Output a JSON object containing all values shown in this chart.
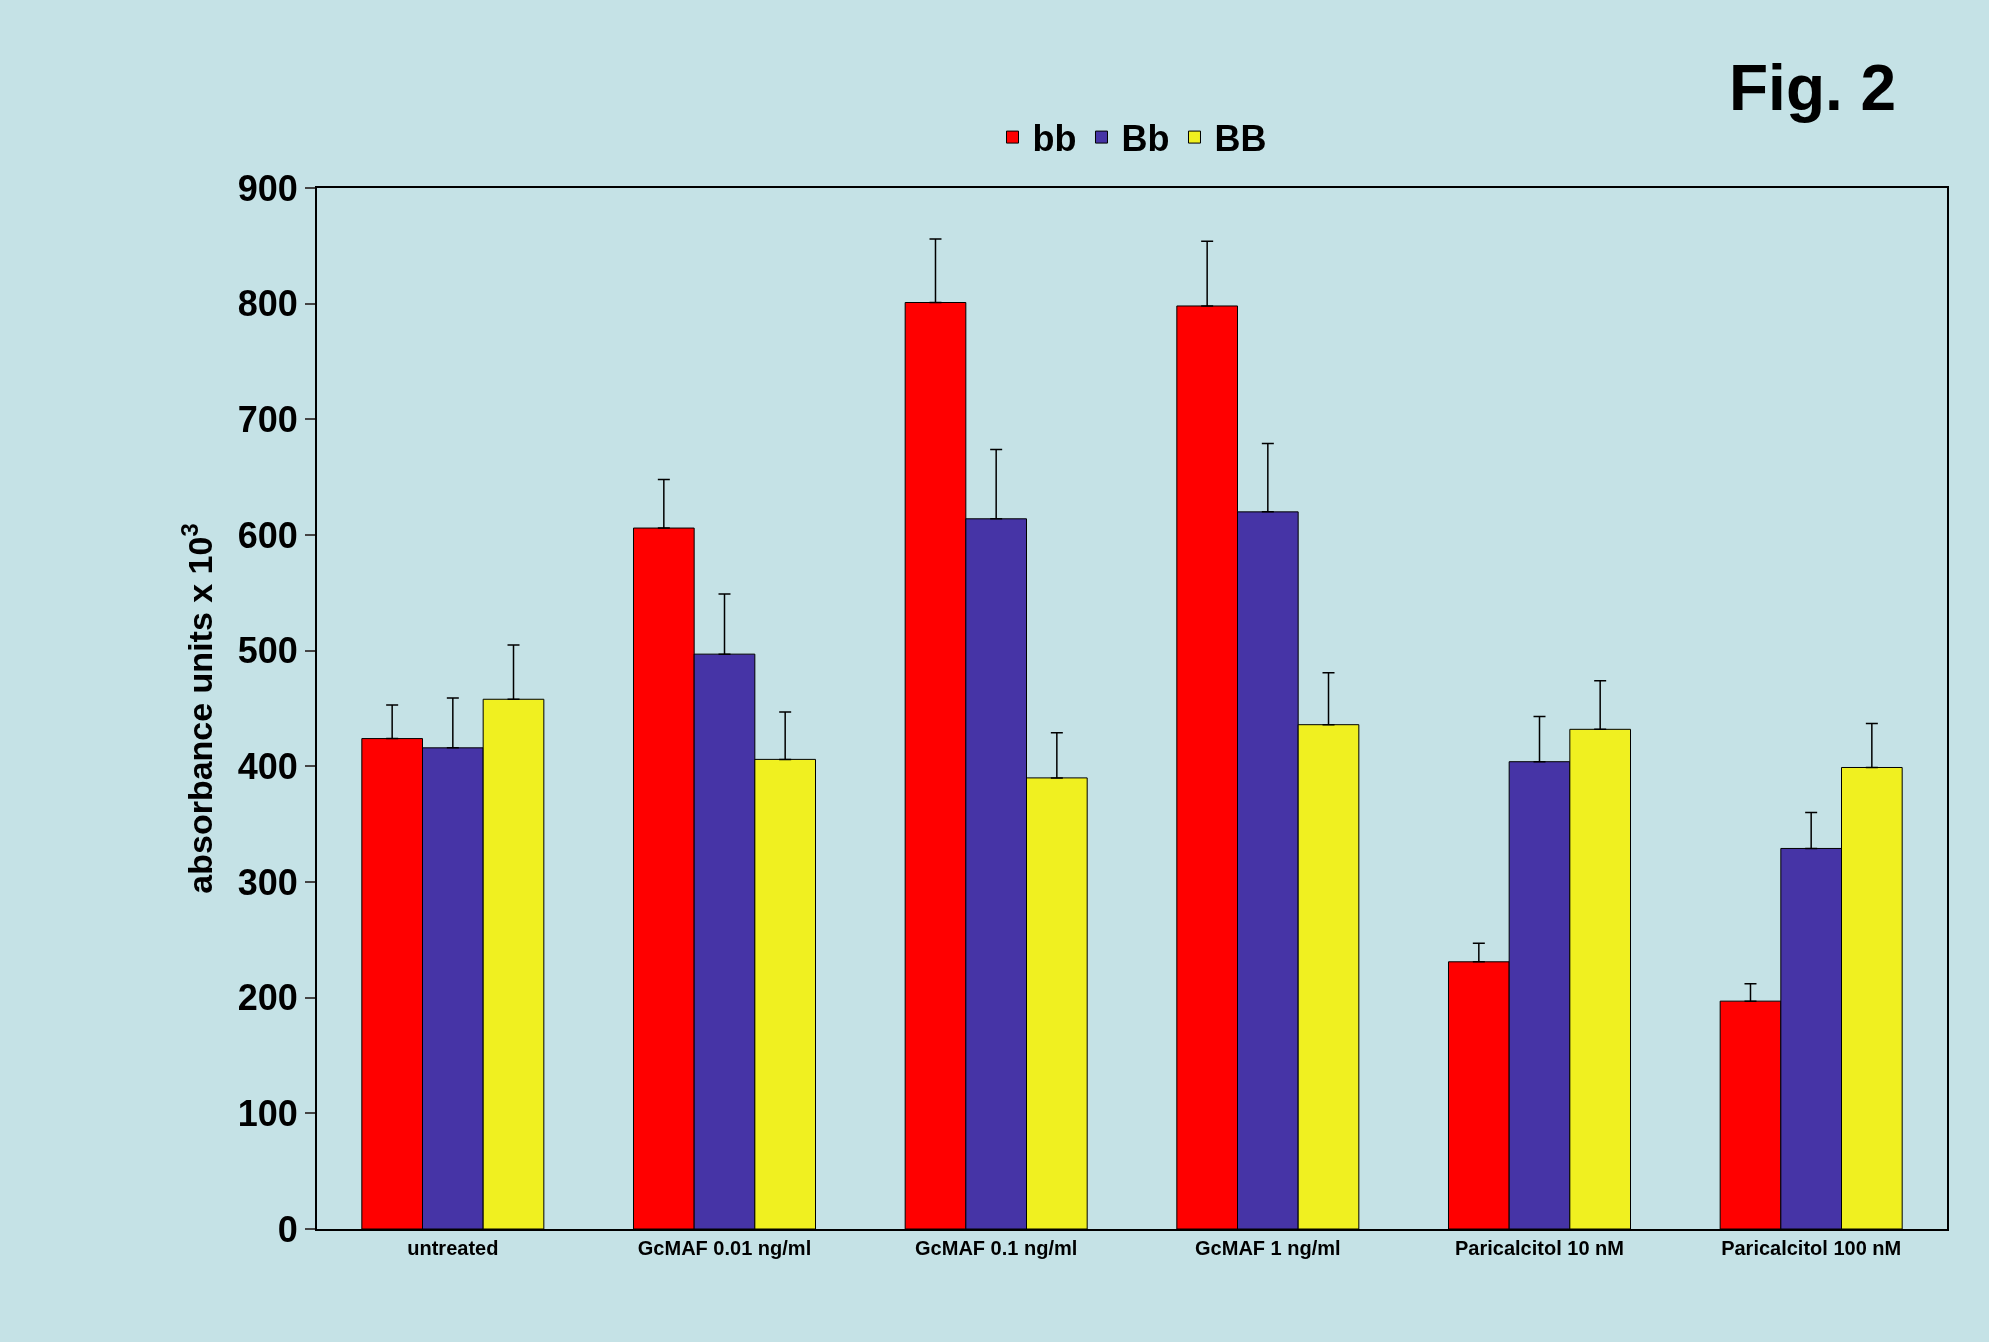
{
  "chart_data": {
    "type": "bar",
    "ylabel": "absorbance units x 10$^{3}$",
    "categories": [
      "untreated",
      "GcMAF 0.01 ng/ml",
      "GcMAF 0.1 ng/ml",
      "GcMAF 1 ng/ml",
      "Paricalcitol 10 nM",
      "Paricalcitol 100 nM"
    ],
    "series": [
      {
        "name": "bb",
        "color": "#ff0000",
        "values": [
          424,
          606,
          801,
          798,
          231,
          197
        ],
        "errors": [
          [
            424,
            453
          ],
          [
            606,
            648
          ],
          [
            801,
            856
          ],
          [
            798,
            854
          ],
          [
            231,
            247
          ],
          [
            197,
            212
          ]
        ]
      },
      {
        "name": "Bb",
        "color": "#4634a6",
        "values": [
          416,
          497,
          614,
          620,
          404,
          329
        ],
        "errors": [
          [
            416,
            459
          ],
          [
            497,
            549
          ],
          [
            614,
            674
          ],
          [
            620,
            679
          ],
          [
            404,
            443
          ],
          [
            329,
            360
          ]
        ]
      },
      {
        "name": "BB",
        "color": "#f0f020",
        "values": [
          458,
          406,
          390,
          436,
          432,
          399
        ],
        "errors": [
          [
            458,
            505
          ],
          [
            406,
            447
          ],
          [
            390,
            429
          ],
          [
            436,
            481
          ],
          [
            432,
            474
          ],
          [
            399,
            437
          ]
        ]
      }
    ],
    "ylim": [
      0,
      900
    ],
    "yticks": [
      0,
      100,
      200,
      300,
      400,
      500,
      600,
      700,
      800,
      900
    ],
    "grid": false,
    "legend": "top",
    "annotations": [
      "Fig. 2"
    ]
  }
}
